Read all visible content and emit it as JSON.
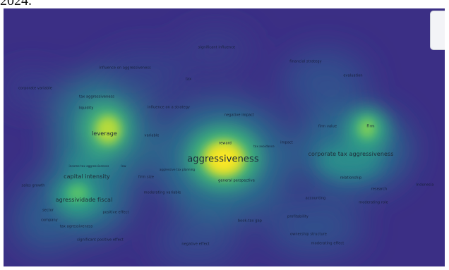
{
  "caption": "2024.",
  "colors": {
    "background": "#3b2f85",
    "mid": "#2c6e8e",
    "green": "#2fb47c",
    "hot": "#fde725"
  },
  "terms": [
    {
      "text": "aggressiveness",
      "size": "xl"
    },
    {
      "text": "leverage",
      "size": "l"
    },
    {
      "text": "corporate tax aggressiveness",
      "size": "l"
    },
    {
      "text": "capital intensity",
      "size": "l"
    },
    {
      "text": "agressividade fiscal",
      "size": "l"
    },
    {
      "text": "significant influence",
      "size": "m"
    },
    {
      "text": "influence on aggressiveness",
      "size": "m"
    },
    {
      "text": "financial strategy",
      "size": "m"
    },
    {
      "text": "tax",
      "size": "m"
    },
    {
      "text": "evaluation",
      "size": "m"
    },
    {
      "text": "corporate variable",
      "size": "m"
    },
    {
      "text": "tax aggressiveness",
      "size": "m"
    },
    {
      "text": "liquidity",
      "size": "m"
    },
    {
      "text": "influence on a strategy",
      "size": "m"
    },
    {
      "text": "negative impact",
      "size": "m"
    },
    {
      "text": "firm value",
      "size": "m"
    },
    {
      "text": "Firm",
      "size": "m"
    },
    {
      "text": "variable",
      "size": "m"
    },
    {
      "text": "impact",
      "size": "m"
    },
    {
      "text": "reward",
      "size": "m"
    },
    {
      "text": "firm size",
      "size": "m"
    },
    {
      "text": "general perspective",
      "size": "m"
    },
    {
      "text": "relationship",
      "size": "m"
    },
    {
      "text": "research",
      "size": "m"
    },
    {
      "text": "Indonesia",
      "size": "m"
    },
    {
      "text": "sales growth",
      "size": "m"
    },
    {
      "text": "moderating variable",
      "size": "m"
    },
    {
      "text": "accounting",
      "size": "m"
    },
    {
      "text": "moderating role",
      "size": "m"
    },
    {
      "text": "positive effect",
      "size": "m"
    },
    {
      "text": "sector",
      "size": "m"
    },
    {
      "text": "company",
      "size": "m"
    },
    {
      "text": "tax agressiveness",
      "size": "m"
    },
    {
      "text": "book-tax gap",
      "size": "m"
    },
    {
      "text": "profitability",
      "size": "m"
    },
    {
      "text": "ownership structure",
      "size": "m"
    },
    {
      "text": "moderating effect",
      "size": "m"
    },
    {
      "text": "significant positive effect",
      "size": "m"
    },
    {
      "text": "negative effect",
      "size": "m"
    },
    {
      "text": "income tax aggressiveness",
      "size": "s"
    },
    {
      "text": "aggressive tax planning",
      "size": "s"
    },
    {
      "text": "tax avoidance",
      "size": "s"
    },
    {
      "text": "low",
      "size": "s"
    }
  ]
}
